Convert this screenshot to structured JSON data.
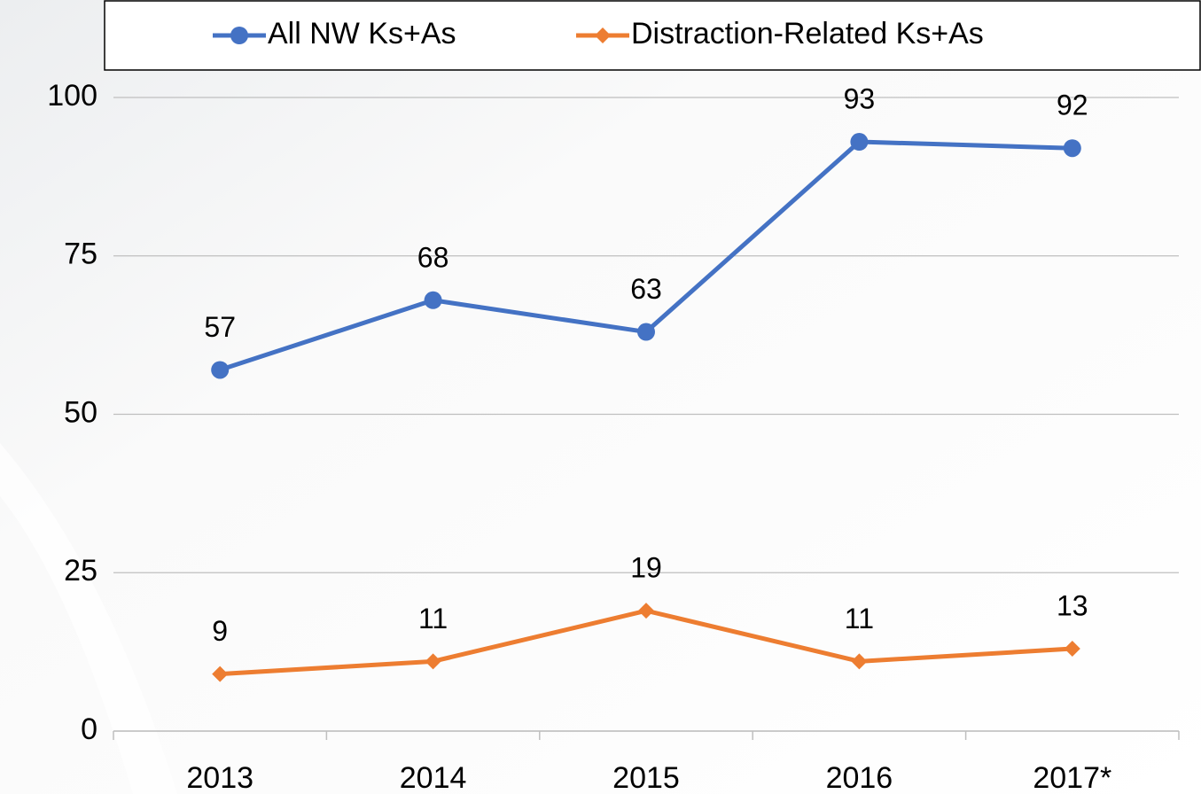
{
  "chart_data": {
    "type": "line",
    "categories": [
      "2013",
      "2014",
      "2015",
      "2016",
      "2017*"
    ],
    "series": [
      {
        "name": "All NW Ks+As",
        "color": "#4472c4",
        "marker": "circle",
        "values": [
          57,
          68,
          63,
          93,
          92
        ]
      },
      {
        "name": "Distraction-Related Ks+As",
        "color": "#ed7d31",
        "marker": "diamond",
        "values": [
          9,
          11,
          19,
          11,
          13
        ]
      }
    ],
    "ylim": [
      0,
      100
    ],
    "yticks": [
      0,
      25,
      50,
      75,
      100
    ],
    "grid": true,
    "legend": "top"
  }
}
